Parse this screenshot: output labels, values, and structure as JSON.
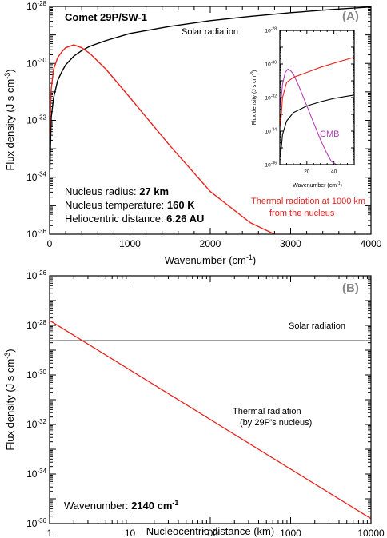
{
  "chart_data": [
    {
      "type": "line",
      "panel_label": "(A)",
      "title": "Comet 29P/SW-1",
      "xlabel_base": "Wavenumber (cm",
      "xlabel_sup": "-1",
      "xlabel_end": ")",
      "ylabel_base": "Flux density (J s cm",
      "ylabel_sup": "-3",
      "ylabel_end": ")",
      "xlim": [
        0,
        4000
      ],
      "ylim_log10": [
        -36,
        -28
      ],
      "y_scale": "log",
      "x_ticks": [
        "0",
        "1000",
        "2000",
        "3000",
        "4000"
      ],
      "y_ticks_exp": [
        "-36",
        "-34",
        "-32",
        "-30",
        "-28"
      ],
      "series": [
        {
          "name": "Solar radiation",
          "color": "#000000",
          "x": [
            2,
            20,
            50,
            100,
            150,
            200,
            300,
            400,
            500,
            700,
            1000,
            1500,
            2000,
            2500,
            3000,
            3500,
            4000
          ],
          "log10_y": [
            -33.9,
            -31.9,
            -31.2,
            -30.6,
            -30.3,
            -30.05,
            -29.75,
            -29.55,
            -29.4,
            -29.2,
            -28.95,
            -28.7,
            -28.5,
            -28.35,
            -28.22,
            -28.11,
            -28.02
          ]
        },
        {
          "name": "Thermal radiation at 1000 km from the nucleus",
          "color": "#e8231f",
          "x": [
            2,
            20,
            50,
            100,
            150,
            200,
            300,
            400,
            500,
            700,
            1000,
            1500,
            2000,
            2500,
            2800
          ],
          "log10_y": [
            -32.5,
            -30.9,
            -30.2,
            -29.8,
            -29.6,
            -29.45,
            -29.35,
            -29.45,
            -29.65,
            -30.2,
            -31.2,
            -32.9,
            -34.5,
            -35.6,
            -36.0
          ]
        }
      ],
      "annotations": {
        "solar_label": "Solar radiation",
        "thermal_label_1": "Thermal radiation at 1000 km",
        "thermal_label_2": "from the nucleus",
        "radius_label": "Nucleus radius: ",
        "radius_value": "27 km",
        "temp_label": "Nucleus temperature: ",
        "temp_value": "160 K",
        "dist_label": "Heliocentric distance: ",
        "dist_value": "6.26 AU"
      },
      "inset": {
        "xlabel_base": "Wavenumber (cm",
        "xlabel_sup": "-1",
        "xlabel_end": ")",
        "ylabel_base": "Flux density (J s cm",
        "ylabel_sup": "-3",
        "ylabel_end": ")",
        "xlim": [
          0,
          55
        ],
        "ylim_log10": [
          -36,
          -28
        ],
        "x_ticks": [
          "20",
          "40"
        ],
        "y_ticks_exp": [
          "-36",
          "-34",
          "-32",
          "-30",
          "-28"
        ],
        "cmb_label": "CMB",
        "series": [
          {
            "name": "CMB",
            "color": "#b140b4",
            "x": [
              0.5,
              2,
              4,
              6,
              8,
              10,
              14,
              18,
              22,
              26,
              30,
              34,
              38,
              42
            ],
            "log10_y": [
              -32.5,
              -31.2,
              -30.5,
              -30.3,
              -30.4,
              -30.6,
              -31.3,
              -32.1,
              -32.9,
              -33.7,
              -34.5,
              -35.2,
              -35.8,
              -36.0
            ]
          },
          {
            "name": "Thermal radiation",
            "color": "#e8231f",
            "x": [
              0.5,
              2,
              5,
              10,
              20,
              30,
              40,
              55
            ],
            "log10_y": [
              -33.7,
              -32.0,
              -31.1,
              -30.8,
              -30.5,
              -30.2,
              -29.95,
              -29.6
            ]
          },
          {
            "name": "Solar radiation",
            "color": "#000000",
            "x": [
              0.5,
              2,
              5,
              10,
              20,
              30,
              40,
              55
            ],
            "log10_y": [
              -35.5,
              -34.2,
              -33.4,
              -32.9,
              -32.5,
              -32.25,
              -32.05,
              -31.85
            ]
          }
        ]
      }
    },
    {
      "type": "line",
      "panel_label": "(B)",
      "xlabel": "Nucleocentric distance (km)",
      "ylabel_base": "Flux density (J s cm",
      "ylabel_sup": "-3",
      "ylabel_end": ")",
      "x_scale": "log",
      "xlim": [
        1,
        10000
      ],
      "ylim_log10": [
        -36,
        -26
      ],
      "x_ticks": [
        "1",
        "10",
        "100",
        "1000",
        "10000"
      ],
      "y_ticks_exp": [
        "-36",
        "-34",
        "-32",
        "-30",
        "-28",
        "-26"
      ],
      "series": [
        {
          "name": "Solar radiation",
          "color": "#000000",
          "x": [
            1,
            10000
          ],
          "log10_y": [
            -28.62,
            -28.62
          ]
        },
        {
          "name": "Thermal radiation (by 29P's nucleus)",
          "color": "#e8231f",
          "x": [
            1,
            10000
          ],
          "log10_y": [
            -27.8,
            -35.8
          ]
        }
      ],
      "annotations": {
        "solar_label": "Solar radiation",
        "thermal_label_1": "Thermal radiation",
        "thermal_label_2": "(by 29P’s nucleus)",
        "wavenumber_label": "Wavenumber: ",
        "wavenumber_value": "2140 cm",
        "wavenumber_sup": "-1"
      }
    }
  ]
}
